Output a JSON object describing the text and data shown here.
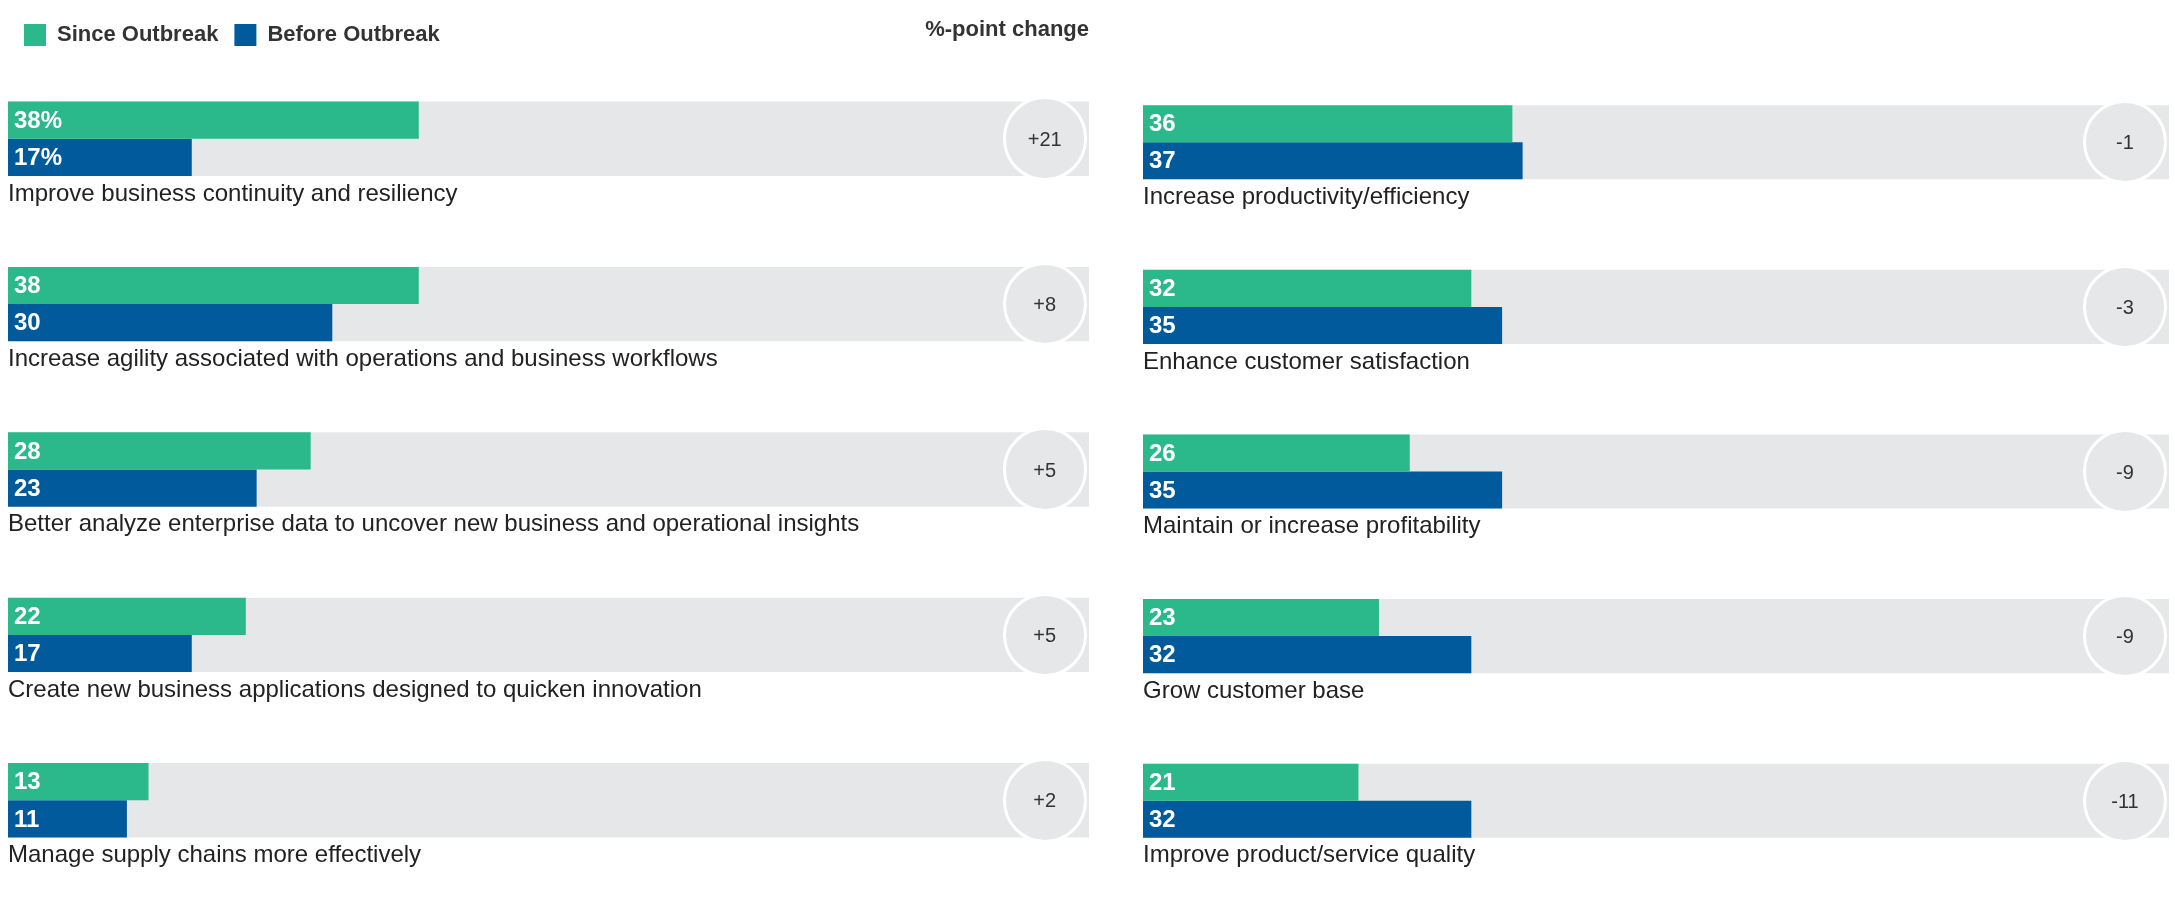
{
  "chart_data": [
    {
      "type": "bar",
      "orientation": "horizontal",
      "subtitle": "%-point change",
      "legend": "top left",
      "tick_labels": false,
      "xlim": [
        0,
        100
      ],
      "categories": [
        "Improve business continuity and resiliency",
        "Increase agility associated with operations and business workflows",
        "Better analyze enterprise data to uncover new business and operational insights",
        "Create new business applications designed to quicken innovation",
        "Manage supply chains more effectively"
      ],
      "series": [
        {
          "name": "Since Outbreak",
          "color": "#2bb88a",
          "values": [
            38,
            38,
            28,
            22,
            13
          ],
          "value_labels": [
            "38%",
            "38",
            "28",
            "22",
            "13"
          ]
        },
        {
          "name": "Before Outbreak",
          "color": "#005a9c",
          "values": [
            17,
            30,
            23,
            17,
            11
          ],
          "value_labels": [
            "17%",
            "30",
            "23",
            "17",
            "11"
          ]
        }
      ],
      "annotations": [
        "+21",
        "+8",
        "+5",
        "+5",
        "+2"
      ]
    },
    {
      "type": "bar",
      "orientation": "horizontal",
      "legend": false,
      "tick_labels": false,
      "xlim": [
        0,
        100
      ],
      "categories": [
        "Increase productivity/efficiency",
        "Enhance customer satisfaction",
        "Maintain or increase profitability",
        "Grow customer base",
        "Improve product/service quality"
      ],
      "series": [
        {
          "color": "#2bb88a",
          "values": [
            36,
            32,
            26,
            23,
            21
          ],
          "value_labels": [
            "36",
            "32",
            "26",
            "23",
            "21"
          ]
        },
        {
          "color": "#005a9c",
          "values": [
            37,
            35,
            35,
            32,
            32
          ],
          "value_labels": [
            "37",
            "35",
            "35",
            "32",
            "32"
          ]
        }
      ],
      "annotations": [
        "-1",
        "-3",
        "-9",
        "-9",
        "-11"
      ]
    }
  ]
}
